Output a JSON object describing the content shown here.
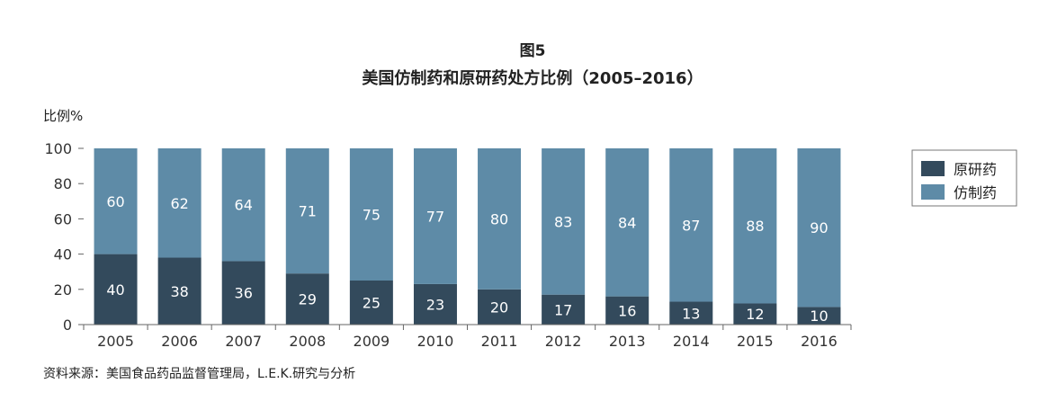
{
  "chart_data": {
    "type": "bar",
    "stacked": true,
    "figure_label": "图5",
    "title": "美国仿制药和原研药处方比例（2005–2016）",
    "ylabel": "比例%",
    "xlabel": "",
    "ylim": [
      0,
      100
    ],
    "yticks": [
      0,
      20,
      40,
      60,
      80,
      100
    ],
    "categories": [
      "2005",
      "2006",
      "2007",
      "2008",
      "2009",
      "2010",
      "2011",
      "2012",
      "2013",
      "2014",
      "2015",
      "2016"
    ],
    "series": [
      {
        "name": "原研药",
        "color": "#334a5c",
        "values": [
          40,
          38,
          36,
          29,
          25,
          23,
          20,
          17,
          16,
          13,
          12,
          10
        ]
      },
      {
        "name": "仿制药",
        "color": "#5e8ba7",
        "values": [
          60,
          62,
          64,
          71,
          75,
          77,
          80,
          83,
          84,
          87,
          88,
          90
        ]
      }
    ],
    "legend_position": "right",
    "grid": false
  },
  "source_note": "资料来源：美国食品药品监督管理局，L.E.K.研究与分析"
}
